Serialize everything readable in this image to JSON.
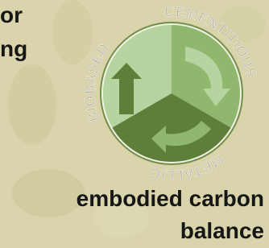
{
  "top_text": [
    "or",
    "ng"
  ],
  "ring_labels": {
    "left": "BIOBASED",
    "right": "CEMENTITIOUS",
    "bottom": "METALLIC"
  },
  "caption": [
    "embodied carbon",
    "balance"
  ]
}
